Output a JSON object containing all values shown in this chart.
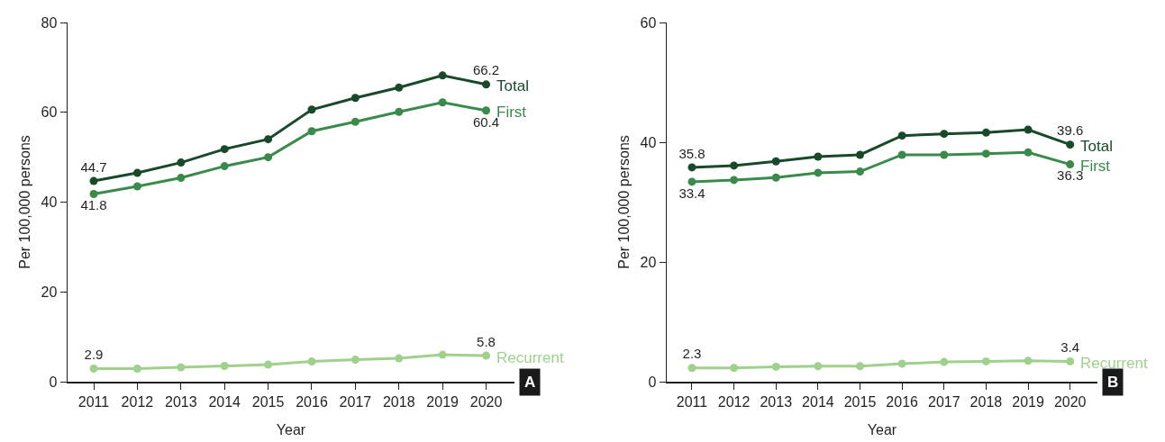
{
  "chart_data": [
    {
      "type": "line",
      "xlabel": "Year",
      "ylabel": "Per 100,000 persons",
      "categories": [
        "2011",
        "2012",
        "2013",
        "2014",
        "2015",
        "2016",
        "2017",
        "2018",
        "2019",
        "2020"
      ],
      "ylim": [
        0,
        80
      ],
      "yticks": [
        0,
        20,
        40,
        60,
        80
      ],
      "marker": "circle",
      "annotations": [
        "A"
      ],
      "series": [
        {
          "name": "Total",
          "color": "#184a2a",
          "values": [
            44.7,
            46.5,
            48.8,
            51.8,
            54.0,
            60.6,
            63.2,
            65.5,
            68.2,
            66.2
          ],
          "value_labels": [
            "44.7",
            null,
            null,
            null,
            null,
            null,
            null,
            null,
            null,
            "66.2"
          ]
        },
        {
          "name": "First",
          "color": "#3a8a4c",
          "values": [
            41.8,
            43.5,
            45.4,
            48.0,
            50.0,
            55.8,
            57.9,
            60.1,
            62.2,
            60.4
          ],
          "value_labels": [
            "41.8",
            null,
            null,
            null,
            null,
            null,
            null,
            null,
            null,
            "60.4"
          ]
        },
        {
          "name": "Recurrent",
          "color": "#9fd18c",
          "values": [
            2.9,
            2.9,
            3.2,
            3.5,
            3.8,
            4.5,
            4.9,
            5.2,
            6.0,
            5.8
          ],
          "value_labels": [
            "2.9",
            null,
            null,
            null,
            null,
            null,
            null,
            null,
            null,
            "5.8"
          ]
        }
      ]
    },
    {
      "type": "line",
      "xlabel": "Year",
      "ylabel": "Per 100,000 persons",
      "categories": [
        "2011",
        "2012",
        "2013",
        "2014",
        "2015",
        "2016",
        "2017",
        "2018",
        "2019",
        "2020"
      ],
      "ylim": [
        0,
        60
      ],
      "yticks": [
        0,
        20,
        40,
        60
      ],
      "marker": "circle",
      "annotations": [
        "B"
      ],
      "series": [
        {
          "name": "Total",
          "color": "#184a2a",
          "values": [
            35.8,
            36.1,
            36.8,
            37.6,
            37.9,
            41.1,
            41.4,
            41.6,
            42.1,
            39.6
          ],
          "value_labels": [
            "35.8",
            null,
            null,
            null,
            null,
            null,
            null,
            null,
            null,
            "39.6"
          ]
        },
        {
          "name": "First",
          "color": "#3a8a4c",
          "values": [
            33.4,
            33.7,
            34.1,
            34.9,
            35.1,
            37.9,
            37.9,
            38.1,
            38.3,
            36.3
          ],
          "value_labels": [
            "33.4",
            null,
            null,
            null,
            null,
            null,
            null,
            null,
            null,
            "36.3"
          ]
        },
        {
          "name": "Recurrent",
          "color": "#9fd18c",
          "values": [
            2.3,
            2.3,
            2.5,
            2.6,
            2.6,
            3.0,
            3.3,
            3.4,
            3.5,
            3.4
          ],
          "value_labels": [
            "2.3",
            null,
            null,
            null,
            null,
            null,
            null,
            null,
            null,
            "3.4"
          ]
        }
      ]
    }
  ]
}
